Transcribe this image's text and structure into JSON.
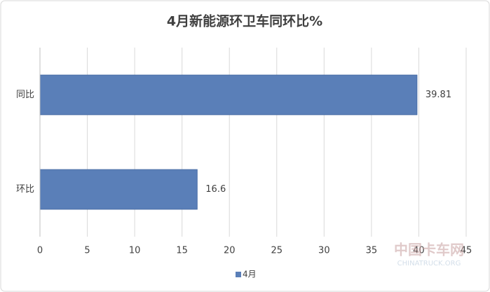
{
  "chart_data": {
    "type": "hbar",
    "title": "4月新能源环卫车同环比%",
    "categories": [
      "同比",
      "环比"
    ],
    "series": [
      {
        "name": "4月",
        "color": "#5a7fb8",
        "values": [
          39.81,
          16.6
        ]
      }
    ],
    "xlim": [
      0,
      45
    ],
    "xticks": [
      0,
      5,
      10,
      15,
      20,
      25,
      30,
      35,
      40,
      45
    ],
    "grid": true,
    "legend": "bottom",
    "watermark": {
      "title": "中国卡车网",
      "subtitle": "CHINATRUCK.ORG"
    }
  }
}
